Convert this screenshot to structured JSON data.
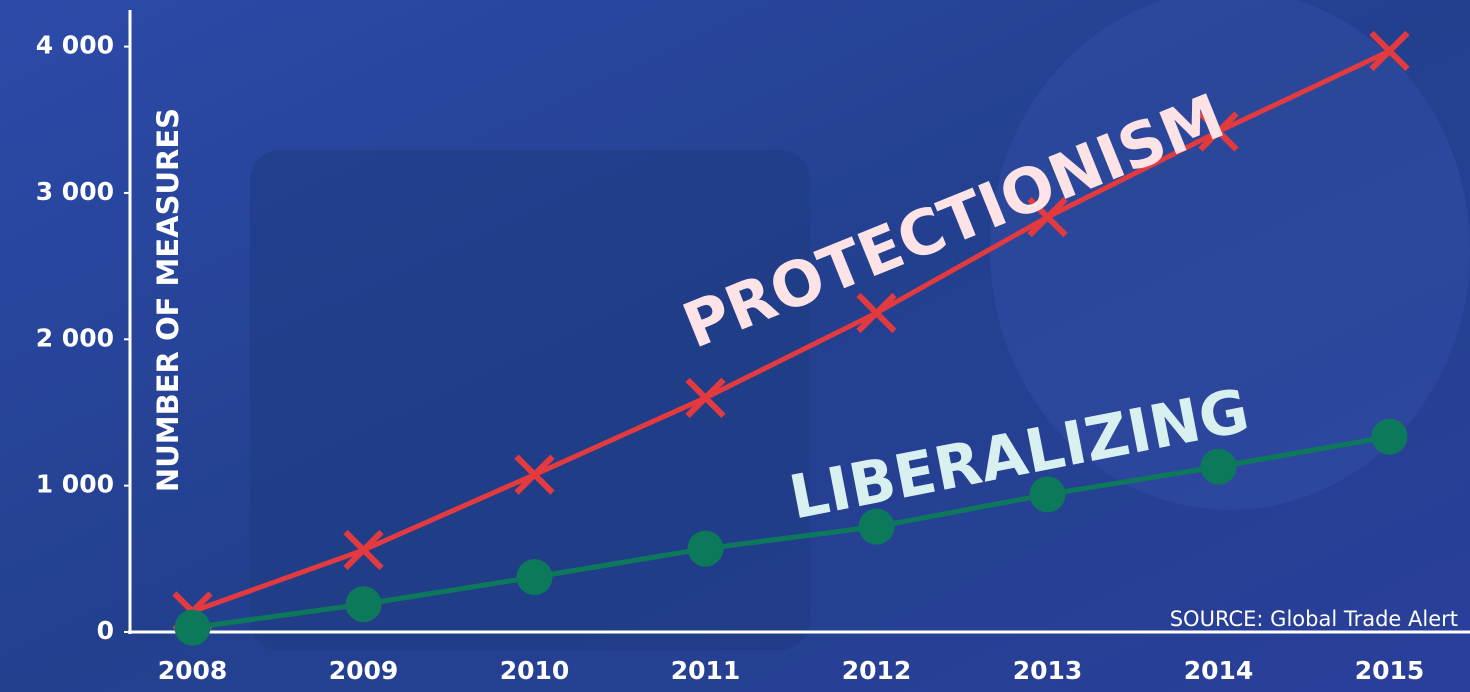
{
  "chart_data": {
    "type": "line",
    "y_label": "NUMBER OF MEASURES",
    "source": "SOURCE: Global Trade Alert",
    "categories": [
      "2008",
      "2009",
      "2010",
      "2011",
      "2012",
      "2013",
      "2014",
      "2015"
    ],
    "series": [
      {
        "name": "PROTECTIONISM",
        "color": "#e23a3f",
        "label_color": "#fde3e6",
        "marker": "x",
        "values": [
          140,
          560,
          1075,
          1600,
          2180,
          2835,
          3420,
          3970
        ]
      },
      {
        "name": "LIBERALIZING",
        "color": "#0c7a5a",
        "label_color": "#d8f1f0",
        "marker": "circle",
        "values": [
          30,
          190,
          375,
          570,
          720,
          940,
          1130,
          1335
        ]
      }
    ],
    "ylim": [
      0,
      4250
    ],
    "yticks": [
      0,
      {
        "value": 1000,
        "label": "1 000"
      },
      {
        "value": 2000,
        "label": "2 000"
      },
      {
        "value": 3000,
        "label": "3 000"
      },
      {
        "value": 4000,
        "label": "4 000"
      }
    ]
  }
}
